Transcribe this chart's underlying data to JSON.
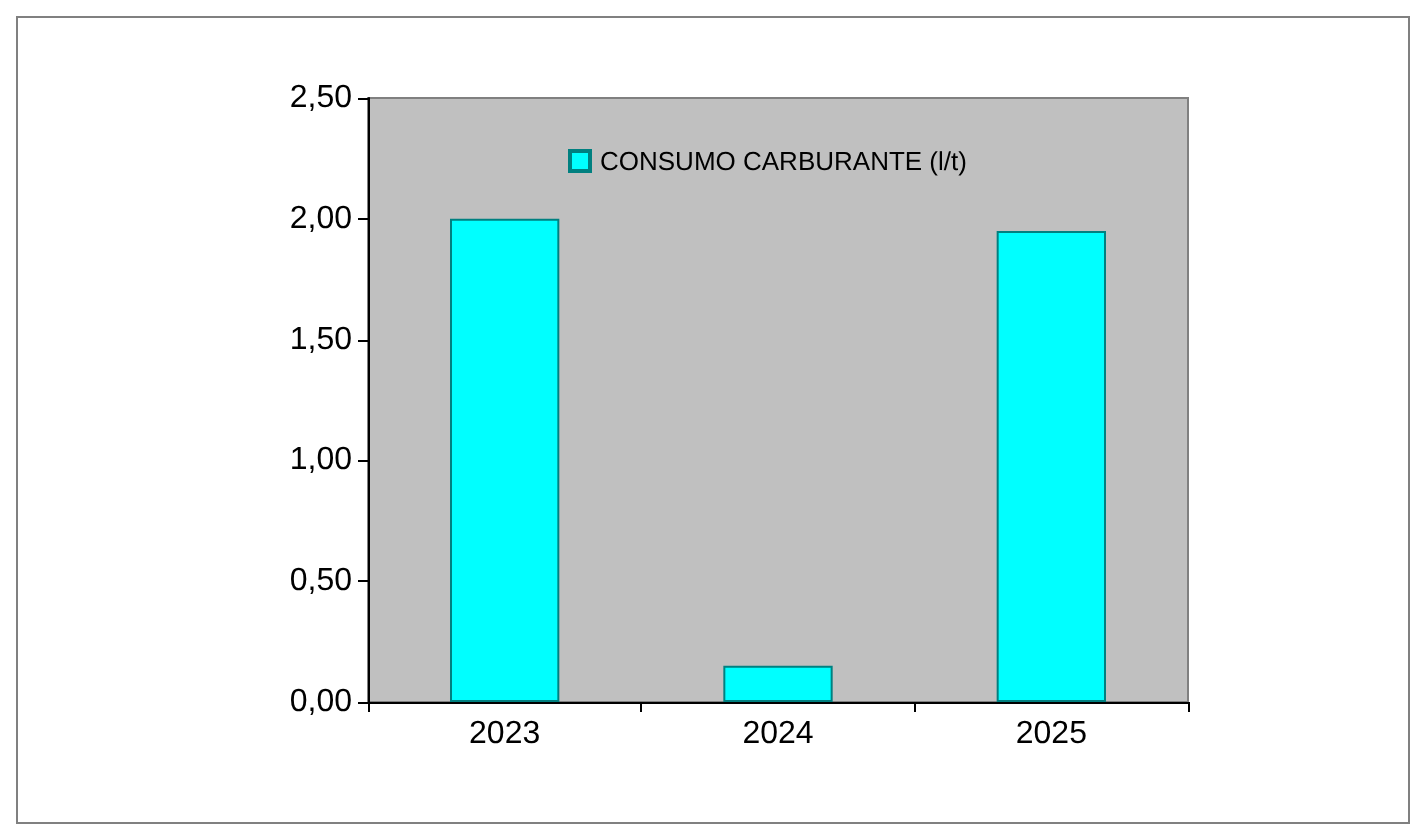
{
  "chart_data": {
    "type": "bar",
    "categories": [
      "2023",
      "2024",
      "2025"
    ],
    "series": [
      {
        "name": "CONSUMO CARBURANTE (l/t)",
        "color": "#00ffff",
        "values": [
          2.0,
          0.15,
          1.95
        ]
      }
    ],
    "ylim": [
      0,
      2.5
    ],
    "yticks": [
      {
        "value": 0,
        "label": "0,00"
      },
      {
        "value": 0.5,
        "label": "0,50"
      },
      {
        "value": 1,
        "label": "1,00"
      },
      {
        "value": 1.5,
        "label": "1,50"
      },
      {
        "value": 2,
        "label": "2,00"
      },
      {
        "value": 2.5,
        "label": "2,50"
      }
    ],
    "grid": false,
    "legend": "top"
  }
}
